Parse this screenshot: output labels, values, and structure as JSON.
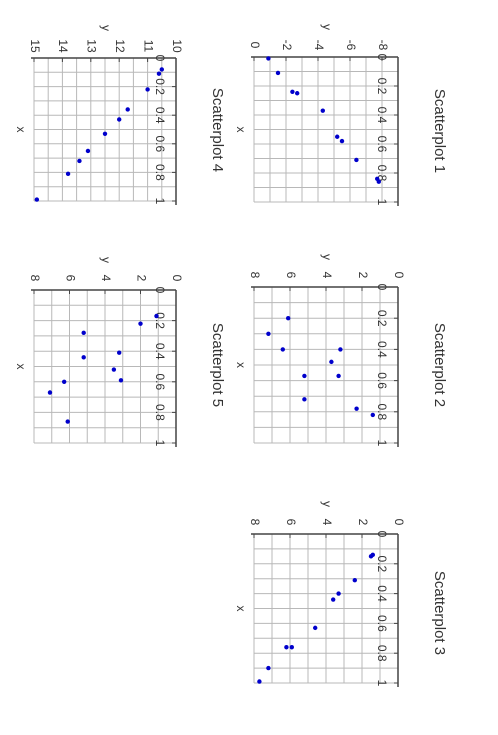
{
  "chart_data": [
    {
      "type": "scatter",
      "title": "Scatterplot 1",
      "xlabel": "x",
      "ylabel": "y",
      "xlim": [
        0,
        1
      ],
      "ylim": [
        -9,
        0
      ],
      "x_ticks": [
        0,
        0.2,
        0.4,
        0.6,
        0.8,
        1
      ],
      "x_tick_labels": [
        "0",
        "0.2",
        "0.4",
        "0.6",
        "0.8",
        "1"
      ],
      "y_ticks": [
        -8,
        -6,
        -4,
        -2,
        0
      ],
      "y_tick_labels": [
        "-8",
        "-6",
        "-4",
        "-2",
        "0"
      ],
      "grid": true,
      "point_color": "#0000cc",
      "points": [
        {
          "x": 0.01,
          "y": -0.9
        },
        {
          "x": 0.11,
          "y": -1.5
        },
        {
          "x": 0.24,
          "y": -2.4
        },
        {
          "x": 0.25,
          "y": -2.7
        },
        {
          "x": 0.37,
          "y": -4.3
        },
        {
          "x": 0.55,
          "y": -5.2
        },
        {
          "x": 0.58,
          "y": -5.5
        },
        {
          "x": 0.71,
          "y": -6.4
        },
        {
          "x": 0.84,
          "y": -7.7
        },
        {
          "x": 0.86,
          "y": -7.8
        }
      ]
    },
    {
      "type": "scatter",
      "title": "Scatterplot 2",
      "xlabel": "x",
      "ylabel": "y",
      "xlim": [
        0,
        1
      ],
      "ylim": [
        0,
        8
      ],
      "x_ticks": [
        0,
        0.2,
        0.4,
        0.6,
        0.8,
        1
      ],
      "x_tick_labels": [
        "0",
        "0.2",
        "0.4",
        "0.6",
        "0.8",
        "1"
      ],
      "y_ticks": [
        0,
        2,
        4,
        6,
        8
      ],
      "y_tick_labels": [
        "0",
        "2",
        "4",
        "6",
        "8"
      ],
      "grid": true,
      "point_color": "#0000cc",
      "points": [
        {
          "x": 0.2,
          "y": 6.1
        },
        {
          "x": 0.4,
          "y": 6.4
        },
        {
          "x": 0.4,
          "y": 3.2
        },
        {
          "x": 0.3,
          "y": 7.2
        },
        {
          "x": 0.48,
          "y": 3.7
        },
        {
          "x": 0.57,
          "y": 5.2
        },
        {
          "x": 0.57,
          "y": 3.3
        },
        {
          "x": 0.72,
          "y": 5.2
        },
        {
          "x": 0.82,
          "y": 1.4
        },
        {
          "x": 0.78,
          "y": 2.3
        }
      ]
    },
    {
      "type": "scatter",
      "title": "Scatterplot 3",
      "xlabel": "x",
      "ylabel": "y",
      "xlim": [
        0,
        1
      ],
      "ylim": [
        0,
        8
      ],
      "x_ticks": [
        0,
        0.2,
        0.4,
        0.6,
        0.8,
        1
      ],
      "x_tick_labels": [
        "0",
        "0.2",
        "0.4",
        "0.6",
        "0.8",
        "1"
      ],
      "y_ticks": [
        0,
        2,
        4,
        6,
        8
      ],
      "y_tick_labels": [
        "0",
        "2",
        "4",
        "6",
        "8"
      ],
      "grid": true,
      "point_color": "#0000cc",
      "points": [
        {
          "x": 0.14,
          "y": 1.4
        },
        {
          "x": 0.15,
          "y": 1.5
        },
        {
          "x": 0.31,
          "y": 2.4
        },
        {
          "x": 0.4,
          "y": 3.3
        },
        {
          "x": 0.44,
          "y": 3.6
        },
        {
          "x": 0.63,
          "y": 4.6
        },
        {
          "x": 0.76,
          "y": 5.9
        },
        {
          "x": 0.76,
          "y": 6.2
        },
        {
          "x": 0.9,
          "y": 7.2
        },
        {
          "x": 0.99,
          "y": 7.7
        }
      ]
    },
    {
      "type": "scatter",
      "title": "Scatterplot 4",
      "xlabel": "x",
      "ylabel": "y",
      "xlim": [
        0,
        1
      ],
      "ylim": [
        10,
        15
      ],
      "x_ticks": [
        0,
        0.2,
        0.4,
        0.6,
        0.8,
        1
      ],
      "x_tick_labels": [
        "0",
        "0.2",
        "0.4",
        "0.6",
        "0.8",
        "1"
      ],
      "y_ticks": [
        10,
        11,
        12,
        13,
        14,
        15
      ],
      "y_tick_labels": [
        "10",
        "11",
        "12",
        "13",
        "14",
        "15"
      ],
      "grid": true,
      "point_color": "#0000cc",
      "points": [
        {
          "x": 0.08,
          "y": 10.5
        },
        {
          "x": 0.11,
          "y": 10.6
        },
        {
          "x": 0.22,
          "y": 11.0
        },
        {
          "x": 0.36,
          "y": 11.7
        },
        {
          "x": 0.43,
          "y": 12.0
        },
        {
          "x": 0.53,
          "y": 12.5
        },
        {
          "x": 0.65,
          "y": 13.1
        },
        {
          "x": 0.72,
          "y": 13.4
        },
        {
          "x": 0.81,
          "y": 13.8
        },
        {
          "x": 0.99,
          "y": 14.9
        }
      ]
    },
    {
      "type": "scatter",
      "title": "Scatterplot 5",
      "xlabel": "x",
      "ylabel": "y",
      "xlim": [
        0,
        1
      ],
      "ylim": [
        0,
        8
      ],
      "x_ticks": [
        0,
        0.2,
        0.4,
        0.6,
        0.8,
        1
      ],
      "x_tick_labels": [
        "0",
        "0.2",
        "0.4",
        "0.6",
        "0.8",
        "1"
      ],
      "y_ticks": [
        0,
        2,
        4,
        6,
        8
      ],
      "y_tick_labels": [
        "0",
        "2",
        "4",
        "6",
        "8"
      ],
      "grid": true,
      "point_color": "#0000cc",
      "points": [
        {
          "x": 0.17,
          "y": 1.1
        },
        {
          "x": 0.22,
          "y": 2.0
        },
        {
          "x": 0.28,
          "y": 5.2
        },
        {
          "x": 0.41,
          "y": 3.2
        },
        {
          "x": 0.44,
          "y": 5.2
        },
        {
          "x": 0.52,
          "y": 3.5
        },
        {
          "x": 0.59,
          "y": 3.1
        },
        {
          "x": 0.6,
          "y": 6.3
        },
        {
          "x": 0.67,
          "y": 7.1
        },
        {
          "x": 0.86,
          "y": 6.1
        }
      ]
    }
  ]
}
